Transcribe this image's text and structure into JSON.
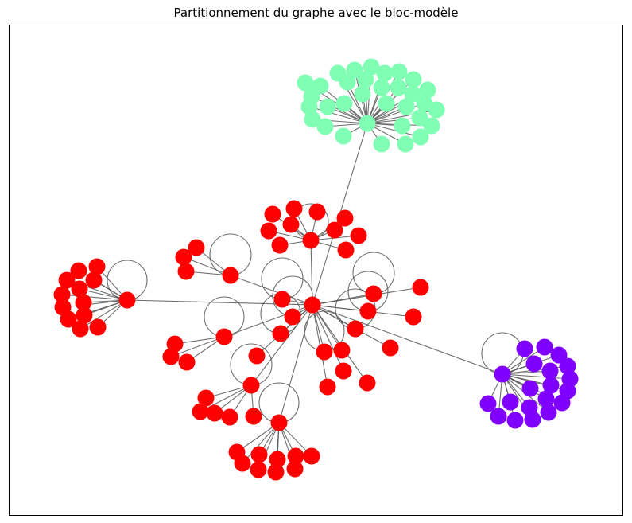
{
  "figure": {
    "title": "Partitionnement du graphe avec le bloc-modèle"
  },
  "colors": {
    "block_red": "#ff0000",
    "block_green": "#80ffb4",
    "block_purple": "#8000ff",
    "edge": "#555555"
  },
  "blocks": [
    {
      "name": "",
      "color_key": "block_red"
    },
    {
      "name": "",
      "color_key": "block_green"
    },
    {
      "name": "",
      "color_key": "block_purple"
    }
  ]
}
